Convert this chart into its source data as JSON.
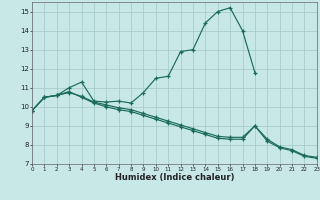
{
  "xlabel": "Humidex (Indice chaleur)",
  "background_color": "#c8e8e8",
  "grid_color": "#a8cccc",
  "line_color": "#1a6b5a",
  "xlim": [
    0,
    23
  ],
  "ylim": [
    7,
    15.5
  ],
  "yticks": [
    7,
    8,
    9,
    10,
    11,
    12,
    13,
    14,
    15
  ],
  "xticks": [
    0,
    1,
    2,
    3,
    4,
    5,
    6,
    7,
    8,
    9,
    10,
    11,
    12,
    13,
    14,
    15,
    16,
    17,
    18,
    19,
    20,
    21,
    22,
    23
  ],
  "lines": [
    {
      "x": [
        0,
        1,
        2,
        3,
        4,
        5,
        6,
        7,
        8,
        9,
        10,
        11,
        12,
        13,
        14,
        15,
        16,
        17,
        18
      ],
      "y": [
        9.8,
        10.5,
        10.6,
        11.0,
        11.3,
        10.3,
        10.25,
        10.3,
        10.2,
        10.75,
        11.5,
        11.6,
        12.9,
        13.0,
        14.4,
        15.0,
        15.2,
        14.0,
        11.8
      ]
    },
    {
      "x": [
        0,
        1,
        2,
        3,
        4,
        5,
        6,
        7,
        8,
        9,
        10,
        11,
        12,
        13,
        14,
        15,
        16,
        17,
        18,
        19,
        20,
        21,
        22,
        23
      ],
      "y": [
        9.8,
        10.5,
        10.6,
        10.8,
        10.5,
        10.2,
        10.0,
        9.85,
        9.75,
        9.55,
        9.35,
        9.15,
        8.95,
        8.75,
        8.55,
        8.35,
        8.3,
        8.3,
        9.0,
        8.3,
        7.9,
        7.75,
        7.45,
        7.35
      ]
    },
    {
      "x": [
        0,
        1,
        2,
        3,
        4,
        5,
        6,
        7,
        8,
        9,
        10,
        11,
        12,
        13,
        14,
        15,
        16,
        17,
        18,
        19,
        20,
        21,
        22,
        23
      ],
      "y": [
        9.8,
        10.5,
        10.6,
        10.75,
        10.55,
        10.25,
        10.1,
        9.95,
        9.85,
        9.65,
        9.45,
        9.25,
        9.05,
        8.85,
        8.65,
        8.45,
        8.4,
        8.4,
        9.0,
        8.2,
        7.85,
        7.7,
        7.4,
        7.3
      ]
    }
  ]
}
